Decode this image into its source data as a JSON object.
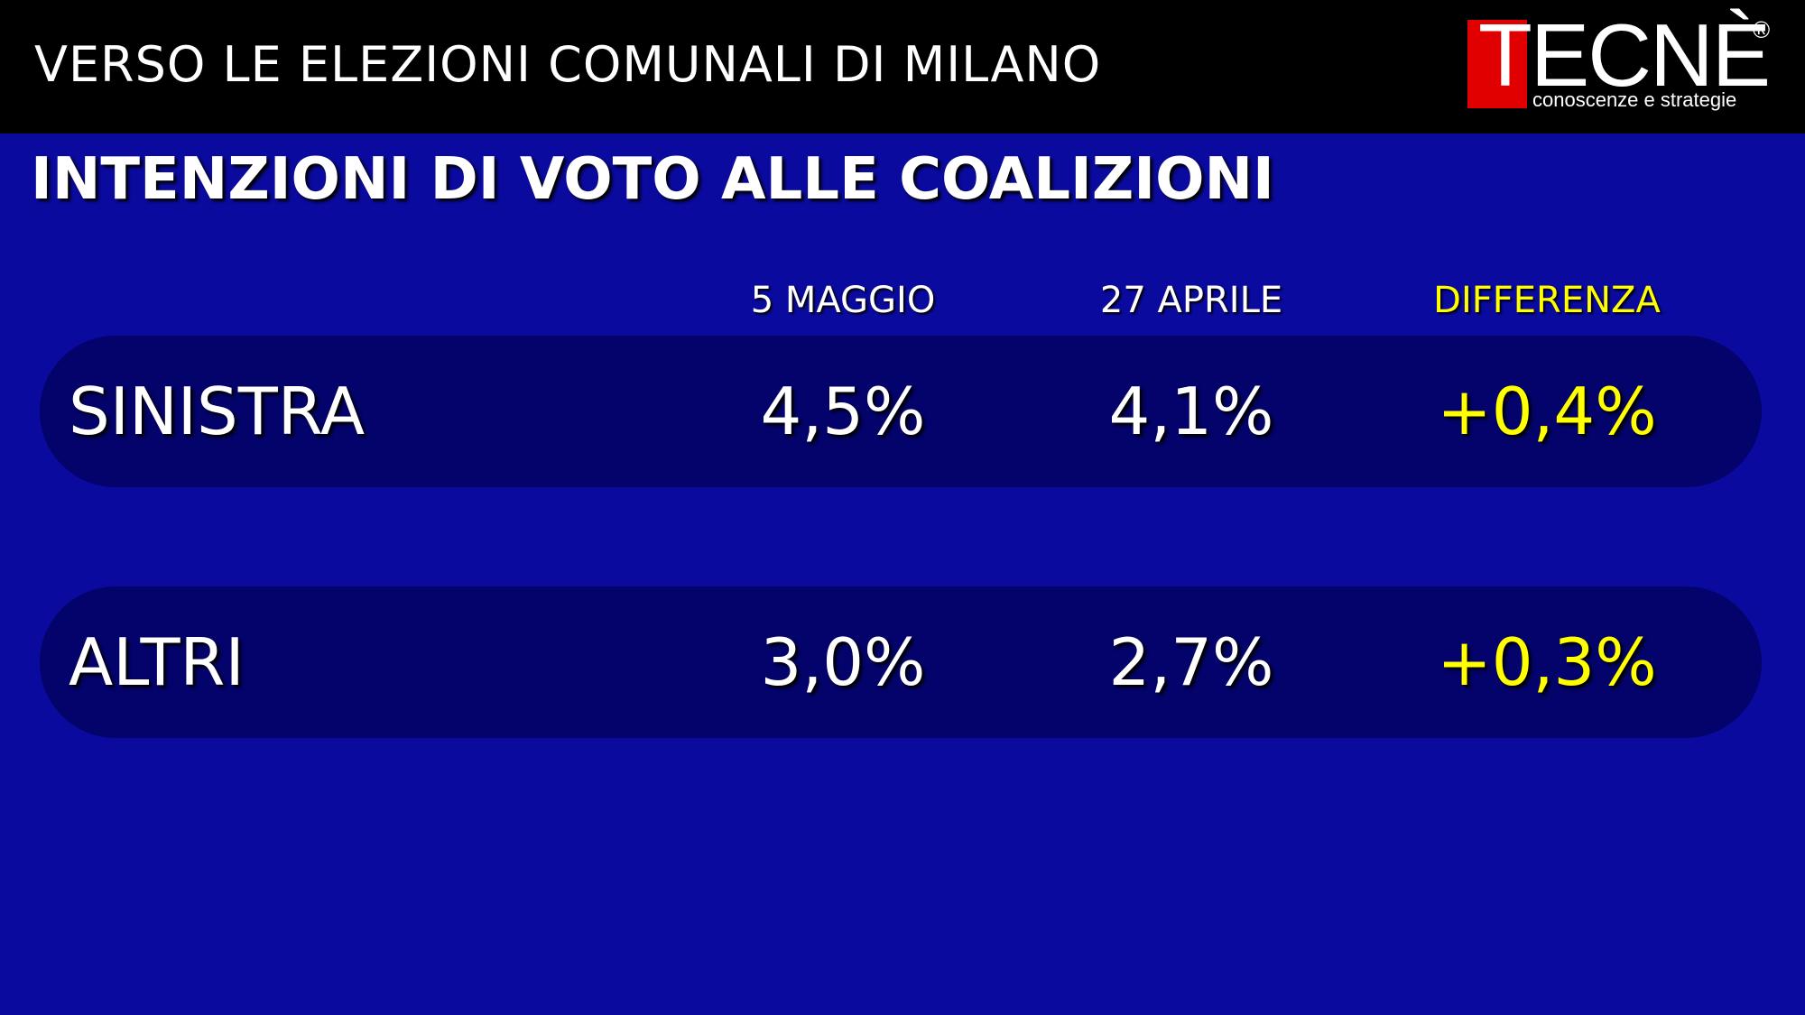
{
  "header": {
    "title": "VERSO LE ELEZIONI COMUNALI DI MILANO",
    "logo_word": "TECNÈ",
    "logo_registered": "®",
    "logo_tagline": "conoscenze e strategie"
  },
  "colors": {
    "background": "#0a0a9e",
    "row_background": "#03036b",
    "header_bar": "#000000",
    "logo_red": "#e10000",
    "difference": "#ffff00"
  },
  "chart_data": {
    "type": "table",
    "title": "INTENZIONI DI VOTO ALLE COALIZIONI",
    "columns": [
      "5 MAGGIO",
      "27 APRILE",
      "DIFFERENZA"
    ],
    "rows": [
      {
        "label": "SINISTRA",
        "values": [
          "4,5%",
          "4,1%",
          "+0,4%"
        ]
      },
      {
        "label": "ALTRI",
        "values": [
          "3,0%",
          "2,7%",
          "+0,3%"
        ]
      }
    ],
    "series": [
      {
        "name": "5 MAGGIO",
        "values": [
          4.5,
          3.0
        ]
      },
      {
        "name": "27 APRILE",
        "values": [
          4.1,
          2.7
        ]
      },
      {
        "name": "DIFFERENZA",
        "values": [
          0.4,
          0.3
        ]
      }
    ],
    "categories": [
      "SINISTRA",
      "ALTRI"
    ],
    "unit": "%"
  }
}
